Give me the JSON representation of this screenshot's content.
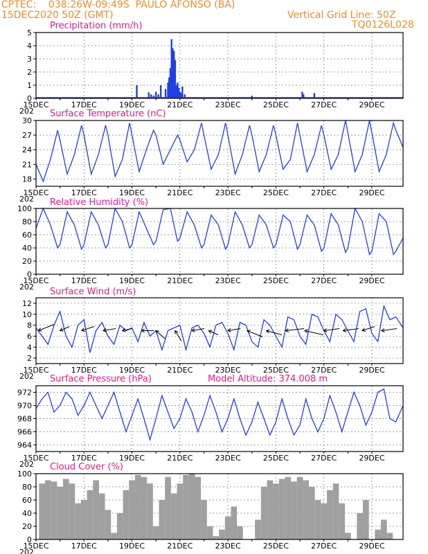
{
  "header": {
    "org": "CPTEC:",
    "coords": "038:26W-09:49S",
    "location": "PAULO AFONSO (BA)",
    "datetime": "15DEC2020 50Z (GMT)",
    "grid_note": "Vertical Grid Line: 50Z",
    "code": "TQ0126L028"
  },
  "model_altitude": "Model Altitude: 374.008 m",
  "year_stub": "202",
  "x_ticks": [
    "15DEC",
    "17DEC",
    "19DEC",
    "21DEC",
    "23DEC",
    "25DEC",
    "27DEC",
    "29DEC"
  ],
  "colors": {
    "header": "#f08a24",
    "title": "#e0198c",
    "series": "#1f3fe6",
    "cloud": "#a0a0a0"
  },
  "chart_data": [
    {
      "type": "bar",
      "title": "Precipitation (mm/h)",
      "ylim": [
        0,
        5
      ],
      "yticks": [
        0,
        1,
        2,
        3,
        4,
        5
      ],
      "x_unit": "days since 15DEC",
      "x": [
        4.2,
        4.7,
        4.8,
        4.9,
        5.0,
        5.1,
        5.2,
        5.4,
        5.5,
        5.55,
        5.6,
        5.65,
        5.7,
        5.75,
        5.8,
        5.85,
        5.9,
        5.95,
        6.0,
        6.05,
        6.1,
        6.2,
        9.0,
        11.1,
        11.15,
        11.6
      ],
      "values": [
        1.0,
        0.45,
        0.3,
        0.2,
        0.5,
        0.3,
        1.0,
        0.7,
        1.2,
        1.6,
        2.3,
        4.5,
        3.8,
        3.6,
        2.9,
        1.0,
        1.2,
        0.8,
        0.5,
        0.4,
        0.9,
        0.3,
        0.2,
        0.5,
        0.3,
        0.4
      ]
    },
    {
      "type": "line",
      "title": "Surface Temperature (nC)",
      "ylim": [
        16.5,
        30
      ],
      "yticks": [
        18,
        21,
        24,
        27,
        30
      ],
      "x_unit": "days since 15DEC",
      "x": [
        0,
        0.3,
        0.6,
        0.9,
        1.0,
        1.3,
        1.6,
        1.9,
        2.0,
        2.3,
        2.6,
        2.9,
        3.0,
        3.3,
        3.6,
        3.9,
        4.0,
        4.3,
        4.6,
        4.9,
        5.0,
        5.3,
        5.6,
        5.9,
        6.0,
        6.3,
        6.6,
        6.9,
        7.0,
        7.3,
        7.6,
        7.9,
        8.0,
        8.3,
        8.6,
        8.9,
        9.0,
        9.3,
        9.6,
        9.9,
        10.0,
        10.3,
        10.6,
        10.9,
        11.0,
        11.3,
        11.6,
        11.9,
        12.0,
        12.3,
        12.6,
        12.9,
        13.0,
        13.3,
        13.6,
        13.9,
        14.0,
        14.3,
        14.6,
        14.9,
        15.0,
        15.3
      ],
      "values": [
        21,
        17.5,
        22,
        28,
        26,
        19,
        23,
        29,
        27,
        19,
        23,
        29,
        27,
        18.5,
        22,
        29.5,
        27,
        19.5,
        24,
        28,
        27,
        21,
        24,
        27,
        26,
        21.5,
        24,
        29.5,
        27,
        20,
        23,
        29.5,
        27,
        19,
        23,
        29,
        27,
        19.5,
        23,
        29,
        27,
        20,
        22,
        29.5,
        27,
        19.5,
        23,
        29,
        27,
        20,
        23,
        30,
        27.5,
        19.5,
        23,
        30,
        27.5,
        19.5,
        23,
        29.5,
        28,
        24.5
      ]
    },
    {
      "type": "line",
      "title": "Relative Humidity (%)",
      "ylim": [
        0,
        100
      ],
      "yticks": [
        0,
        20,
        40,
        60,
        80,
        100
      ],
      "x_unit": "days since 15DEC",
      "x": [
        0,
        0.3,
        0.6,
        0.9,
        1.0,
        1.3,
        1.6,
        1.9,
        2.0,
        2.3,
        2.6,
        2.9,
        3.0,
        3.3,
        3.6,
        3.9,
        4.0,
        4.3,
        4.6,
        4.9,
        5.0,
        5.3,
        5.6,
        5.9,
        6.0,
        6.3,
        6.6,
        6.9,
        7.0,
        7.3,
        7.6,
        7.9,
        8.0,
        8.3,
        8.6,
        8.9,
        9.0,
        9.3,
        9.6,
        9.9,
        10.0,
        10.3,
        10.6,
        10.9,
        11.0,
        11.3,
        11.6,
        11.9,
        12.0,
        12.3,
        12.6,
        12.9,
        13.0,
        13.3,
        13.6,
        13.9,
        14.0,
        14.3,
        14.6,
        14.9,
        15.0,
        15.3
      ],
      "values": [
        70,
        100,
        75,
        40,
        45,
        95,
        75,
        38,
        45,
        95,
        75,
        40,
        45,
        100,
        80,
        40,
        45,
        95,
        70,
        45,
        50,
        98,
        100,
        50,
        55,
        95,
        75,
        40,
        45,
        90,
        75,
        38,
        45,
        95,
        75,
        40,
        45,
        90,
        75,
        40,
        45,
        90,
        80,
        38,
        45,
        90,
        75,
        35,
        40,
        92,
        75,
        33,
        40,
        100,
        80,
        30,
        35,
        92,
        80,
        30,
        35,
        55
      ]
    },
    {
      "type": "line",
      "title": "Surface Wind (m/s)",
      "ylim": [
        1,
        13
      ],
      "yticks": [
        2,
        4,
        6,
        8,
        10,
        12
      ],
      "x_unit": "days since 15DEC",
      "x": [
        0,
        0.25,
        0.5,
        0.75,
        1.0,
        1.25,
        1.5,
        1.75,
        2.0,
        2.25,
        2.5,
        2.75,
        3.0,
        3.25,
        3.5,
        3.75,
        4.0,
        4.25,
        4.5,
        4.75,
        5.0,
        5.25,
        5.5,
        5.75,
        6.0,
        6.25,
        6.5,
        6.75,
        7.0,
        7.25,
        7.5,
        7.75,
        8.0,
        8.25,
        8.5,
        8.75,
        9.0,
        9.25,
        9.5,
        9.75,
        10.0,
        10.25,
        10.5,
        10.75,
        11.0,
        11.25,
        11.5,
        11.75,
        12.0,
        12.25,
        12.5,
        12.75,
        13.0,
        13.25,
        13.5,
        13.75,
        14.0,
        14.25,
        14.5,
        14.75,
        15.0,
        15.3
      ],
      "values": [
        7.5,
        6,
        4.5,
        8,
        10.5,
        6,
        4,
        8,
        9,
        3,
        7,
        8.5,
        6,
        4.5,
        8,
        7,
        7.5,
        5,
        8.5,
        6,
        7,
        3.5,
        7,
        7.5,
        8,
        3.5,
        7.5,
        8,
        6.5,
        4,
        8,
        8.5,
        6.5,
        3.5,
        8.5,
        8,
        5,
        4,
        9,
        8,
        6,
        4,
        9.5,
        9,
        6,
        4.5,
        10,
        9.5,
        7,
        5,
        10,
        9,
        7,
        5,
        10.5,
        11,
        6.5,
        5,
        11.5,
        9,
        9.5,
        7.5
      ],
      "vectors": [
        {
          "x": 0.1,
          "u": 5,
          "v": 3
        },
        {
          "x": 1.0,
          "u": 3,
          "v": 2
        },
        {
          "x": 1.9,
          "u": 4,
          "v": 2
        },
        {
          "x": 2.8,
          "u": 4,
          "v": 1
        },
        {
          "x": 3.6,
          "u": 3,
          "v": 1
        },
        {
          "x": 4.4,
          "u": 4,
          "v": 0
        },
        {
          "x": 5.0,
          "u": 3,
          "v": -4
        },
        {
          "x": 5.8,
          "u": 2,
          "v": -5
        },
        {
          "x": 6.5,
          "u": 4,
          "v": 1
        },
        {
          "x": 7.2,
          "u": 3,
          "v": -2
        },
        {
          "x": 8.0,
          "u": 4,
          "v": 1
        },
        {
          "x": 8.8,
          "u": 5,
          "v": -3
        },
        {
          "x": 9.6,
          "u": 5,
          "v": -2
        },
        {
          "x": 10.4,
          "u": 6,
          "v": 1
        },
        {
          "x": 11.2,
          "u": 6,
          "v": -2
        },
        {
          "x": 12.0,
          "u": 5,
          "v": 1
        },
        {
          "x": 12.8,
          "u": 5,
          "v": 1
        },
        {
          "x": 13.6,
          "u": 4,
          "v": 2
        },
        {
          "x": 14.4,
          "u": 5,
          "v": 1
        }
      ]
    },
    {
      "type": "line",
      "title": "Surface Pressure (hPa)",
      "ylim": [
        963,
        973
      ],
      "yticks": [
        964,
        966,
        968,
        970,
        972
      ],
      "x_unit": "days since 15DEC",
      "x": [
        0,
        0.25,
        0.5,
        0.75,
        1.0,
        1.25,
        1.5,
        1.75,
        2.0,
        2.25,
        2.5,
        2.75,
        3.0,
        3.25,
        3.5,
        3.75,
        4.0,
        4.25,
        4.5,
        4.75,
        5.0,
        5.25,
        5.5,
        5.75,
        6.0,
        6.25,
        6.5,
        6.75,
        7.0,
        7.25,
        7.5,
        7.75,
        8.0,
        8.25,
        8.5,
        8.75,
        9.0,
        9.25,
        9.5,
        9.75,
        10.0,
        10.25,
        10.5,
        10.75,
        11.0,
        11.25,
        11.5,
        11.75,
        12.0,
        12.25,
        12.5,
        12.75,
        13.0,
        13.25,
        13.5,
        13.75,
        14.0,
        14.25,
        14.5,
        14.75,
        15.0,
        15.3
      ],
      "values": [
        969.5,
        971,
        972,
        969,
        970,
        972,
        971,
        968.5,
        970,
        972,
        970,
        968,
        970,
        972,
        969,
        966,
        968.5,
        971,
        968,
        964.8,
        968,
        971.5,
        969,
        966.5,
        968,
        971,
        969,
        966,
        968.5,
        971.5,
        969,
        966,
        968,
        971,
        968,
        965.5,
        967.5,
        970.5,
        968,
        965.5,
        967.5,
        971,
        968,
        965.5,
        967,
        971,
        968,
        966,
        968,
        971.5,
        969,
        966,
        969,
        972,
        970,
        967,
        969,
        972,
        972.5,
        968,
        967.5,
        970
      ]
    },
    {
      "type": "area",
      "title": "Cloud Cover (%)",
      "ylim": [
        0,
        100
      ],
      "yticks": [
        0,
        20,
        40,
        60,
        80,
        100
      ],
      "x_unit": "days since 15DEC",
      "x": [
        0,
        0.25,
        0.5,
        0.75,
        1.0,
        1.25,
        1.5,
        1.75,
        2.0,
        2.25,
        2.5,
        2.75,
        3.0,
        3.25,
        3.5,
        3.75,
        4.0,
        4.25,
        4.5,
        4.75,
        5.0,
        5.25,
        5.5,
        5.75,
        6.0,
        6.25,
        6.5,
        6.75,
        7.0,
        7.25,
        7.5,
        7.75,
        8.0,
        8.25,
        8.5,
        8.75,
        9.0,
        9.25,
        9.5,
        9.75,
        10.0,
        10.25,
        10.5,
        10.75,
        11.0,
        11.25,
        11.5,
        11.75,
        12.0,
        12.25,
        12.5,
        12.75,
        13.0,
        13.25,
        13.5,
        13.75,
        14.0,
        14.25,
        14.5,
        14.75,
        15.0
      ],
      "values": [
        0,
        85,
        90,
        88,
        80,
        92,
        85,
        55,
        60,
        75,
        90,
        70,
        45,
        10,
        40,
        75,
        90,
        98,
        95,
        85,
        20,
        60,
        95,
        70,
        85,
        98,
        100,
        95,
        60,
        20,
        5,
        15,
        35,
        50,
        20,
        0,
        0,
        30,
        80,
        90,
        85,
        92,
        95,
        88,
        95,
        90,
        80,
        60,
        55,
        75,
        85,
        55,
        10,
        0,
        40,
        60,
        0,
        15,
        30,
        10,
        0
      ]
    }
  ]
}
